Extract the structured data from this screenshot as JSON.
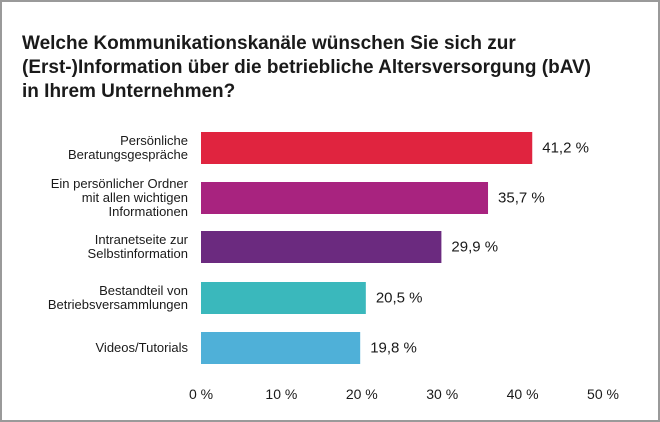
{
  "chart_data": {
    "type": "bar",
    "orientation": "horizontal",
    "title": "Welche Kommunikationskanäle wünschen Sie sich zur\n(Erst-)Information über die betriebliche Altersversorgung (bAV)\nin Ihrem Unternehmen?",
    "categories": [
      "Persönliche\nBeratungsgespräche",
      "Ein persönlicher Ordner\nmit allen wichtigen\nInformationen",
      "Intranetseite zur\nSelbstinformation",
      "Bestandteil von\nBetriebsversammlungen",
      "Videos/Tutorials"
    ],
    "values": [
      41.2,
      35.7,
      29.9,
      20.5,
      19.8
    ],
    "value_labels": [
      "41,2 %",
      "35,7 %",
      "29,9 %",
      "20,5 %",
      "19,8 %"
    ],
    "colors": [
      "#e0243f",
      "#a8237f",
      "#6b2a7f",
      "#3ab8bc",
      "#4fb0d8"
    ],
    "xlim": [
      0,
      50
    ],
    "xticks": [
      {
        "value": 0,
        "label": "0 %"
      },
      {
        "value": 10,
        "label": "10 %"
      },
      {
        "value": 20,
        "label": "20 %"
      },
      {
        "value": 30,
        "label": "30 %"
      },
      {
        "value": 40,
        "label": "40 %"
      },
      {
        "value": 50,
        "label": "50 %"
      }
    ]
  }
}
